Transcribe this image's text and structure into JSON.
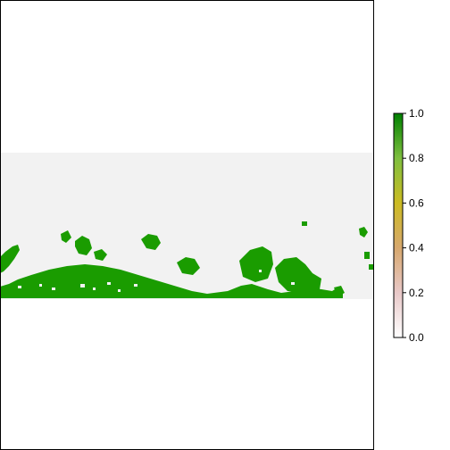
{
  "chart_data": {
    "type": "heatmap",
    "title": "",
    "xlabel": "",
    "ylabel": "",
    "value_range": [
      0,
      1
    ],
    "legend_placement": "right",
    "legend": {
      "ticks": [
        "0.0",
        "0.2",
        "0.4",
        "0.6",
        "0.8",
        "1.0"
      ],
      "tick_values": [
        0,
        0.2,
        0.4,
        0.6,
        0.8,
        1.0
      ],
      "colormap": [
        "#ffffff",
        "#e8c8c8",
        "#d7a86e",
        "#ccbb22",
        "#7fbf3f",
        "#008000"
      ]
    },
    "colors": {
      "value_1": "#1a9c00",
      "value_0": "#f2f2f2",
      "na_background": "#ffffff",
      "frame": "#000000"
    }
  }
}
